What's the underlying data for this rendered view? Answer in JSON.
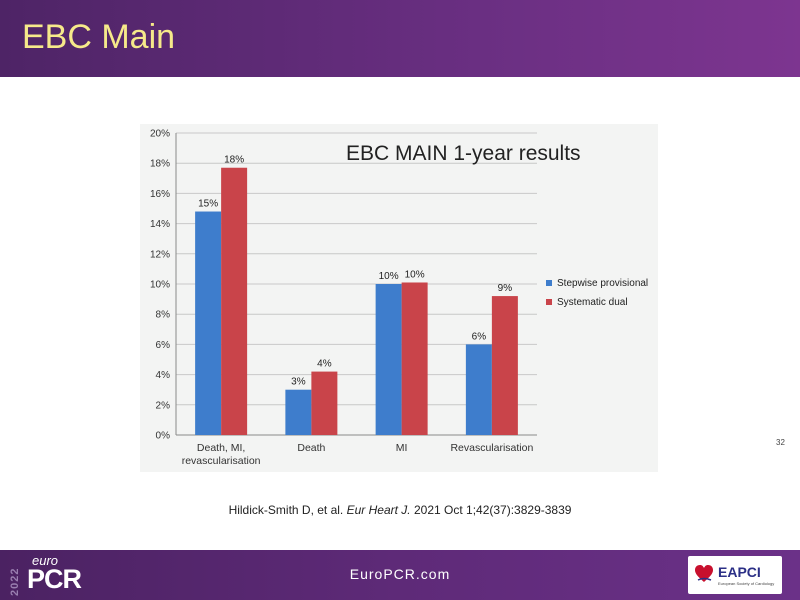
{
  "header": {
    "title": "EBC Main"
  },
  "chart_data": {
    "type": "bar",
    "title": "EBC MAIN 1-year results",
    "categories": [
      "Death, MI,\nrevascularisation",
      "Death",
      "MI",
      "Revascularisation"
    ],
    "series": [
      {
        "name": "Stepwise provisional",
        "values": [
          0.148,
          0.03,
          0.1,
          0.06
        ],
        "labels": [
          "15%",
          "3%",
          "10%",
          "6%"
        ],
        "color": "#3e7dcc"
      },
      {
        "name": "Systematic dual",
        "values": [
          0.177,
          0.042,
          0.101,
          0.092
        ],
        "labels": [
          "18%",
          "4%",
          "10%",
          "9%"
        ],
        "color": "#c9444a"
      }
    ],
    "ylim": [
      0,
      0.2
    ],
    "yticks": [
      "0%",
      "2%",
      "4%",
      "6%",
      "8%",
      "10%",
      "12%",
      "14%",
      "16%",
      "18%",
      "20%"
    ],
    "grid": true,
    "legend_position": "right"
  },
  "page_number": "32",
  "citation": {
    "authors": "Hildick-Smith D, et al.",
    "journal": "Eur Heart  J.",
    "details": "2021 Oct 1;42(37):3829-3839"
  },
  "footer": {
    "year": "2022",
    "brand_prefix": "euro",
    "brand_main": "PCR",
    "website": "EuroPCR.com",
    "partner_logo": "EAPCI",
    "partner_subtitle": "European Society of Cardiology"
  }
}
